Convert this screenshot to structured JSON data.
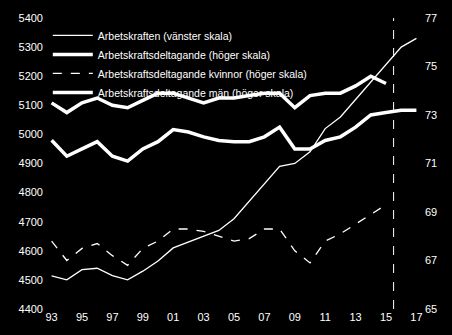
{
  "chart_data": {
    "type": "line",
    "categories": [
      "93",
      null,
      "95",
      null,
      "97",
      null,
      "99",
      null,
      "01",
      null,
      "03",
      null,
      "05",
      null,
      "07",
      null,
      "09",
      null,
      "11",
      null,
      "13",
      null,
      "15",
      null,
      "17"
    ],
    "series": [
      {
        "name": "Arbetskraften (vänster skala)",
        "color": "#ffffff",
        "line_style": "thin",
        "axis": "y",
        "values": [
          4514,
          4500,
          4535,
          4540,
          4515,
          4500,
          4530,
          4565,
          4610,
          4630,
          4650,
          4670,
          4710,
          4770,
          4830,
          4890,
          4900,
          4940,
          5020,
          5060,
          5120,
          5180,
          5240,
          5300,
          5330
        ]
      },
      {
        "name": "Arbetskraftsdeltagande (höger skala)",
        "color": "#ffffff",
        "line_style": "thick",
        "axis": "y2",
        "values": [
          71.96,
          71.3,
          71.6,
          71.9,
          71.3,
          71.1,
          71.6,
          71.9,
          72.4,
          72.3,
          72.1,
          71.95,
          71.9,
          71.9,
          72.1,
          72.5,
          71.6,
          71.6,
          71.95,
          72.1,
          72.5,
          73.0,
          73.1,
          73.2,
          73.2
        ]
      },
      {
        "name": "Arbetskraftsdeltagande kvinnor (höger skala)",
        "color": "#ffffff",
        "line_style": "dashed",
        "axis": "y2",
        "values": [
          67.8,
          67.0,
          67.5,
          67.7,
          67.2,
          66.8,
          67.5,
          67.8,
          68.3,
          68.3,
          68.2,
          68.0,
          67.8,
          67.9,
          68.3,
          68.3,
          67.4,
          66.9,
          67.8,
          68.1,
          68.5,
          68.9,
          69.3,
          null,
          null
        ]
      },
      {
        "name": "Arbetskraftsdeltagande män (höger skala)",
        "color": "#ffffff",
        "line_style": "thick",
        "axis": "y2",
        "values": [
          73.5,
          73.1,
          73.5,
          73.7,
          73.4,
          73.3,
          73.6,
          73.9,
          73.9,
          73.7,
          73.5,
          73.7,
          73.7,
          73.8,
          73.9,
          73.9,
          73.3,
          73.8,
          73.9,
          73.9,
          74.2,
          74.6,
          74.3,
          null,
          null
        ]
      }
    ],
    "ylim": [
      4400,
      5400
    ],
    "yticks": [
      4400,
      4500,
      4600,
      4700,
      4800,
      4900,
      5000,
      5100,
      5200,
      5300,
      5400
    ],
    "y2lim": [
      65,
      77
    ],
    "y2ticks": [
      65,
      67,
      69,
      71,
      73,
      75,
      77
    ],
    "vline_after_category": "15",
    "grid": false,
    "legend": "top-left"
  }
}
